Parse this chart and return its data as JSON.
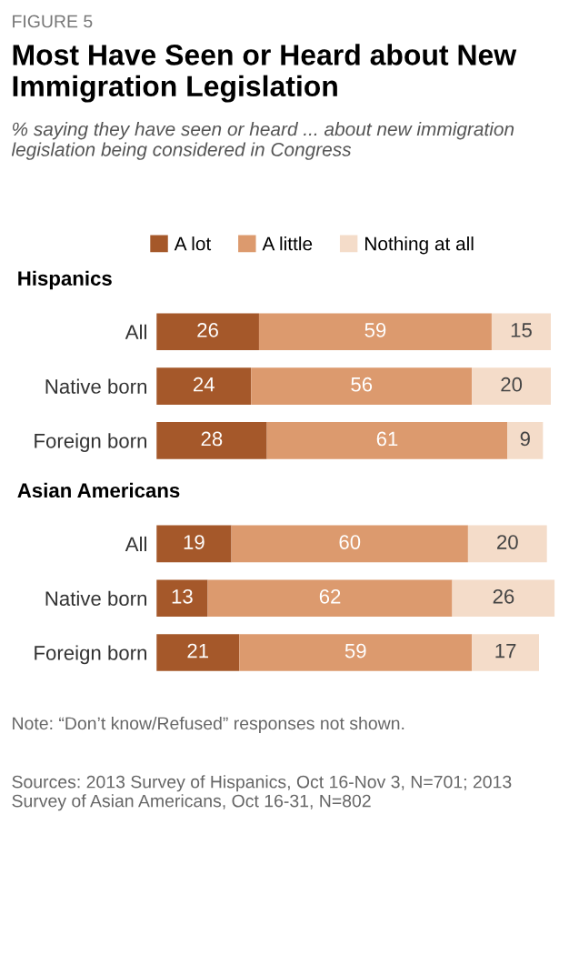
{
  "chart_data": {
    "type": "bar",
    "orientation": "horizontal",
    "stacked": true,
    "title": "Most Have Seen or Heard about New Immigration Legislation",
    "subtitle": "% saying they have seen or heard ... about new immigration legislation being considered in Congress",
    "categories": [
      "All",
      "Native born",
      "Foreign born",
      "All",
      "Native born",
      "Foreign born"
    ],
    "series": [
      {
        "name": "A lot",
        "color": "#a5582a",
        "values": [
          26,
          24,
          28,
          19,
          13,
          21
        ]
      },
      {
        "name": "A little",
        "color": "#dc9a6e",
        "values": [
          59,
          56,
          61,
          60,
          62,
          59
        ]
      },
      {
        "name": "Nothing at all",
        "color": "#f4dcc9",
        "values": [
          15,
          20,
          9,
          20,
          26,
          17
        ]
      }
    ],
    "xlim": [
      0,
      101
    ],
    "tick_labels": "y",
    "data_labels": true,
    "legend": "top",
    "grid": false,
    "annotations": [
      "FIGURE 5",
      "Hispanics",
      "Asian Americans",
      "Note: “Don’t know/Refused” responses not shown.",
      "Sources: 2013 Survey of Hispanics, Oct 16-Nov 3, N=701; 2013 Survey of Asian Americans, Oct 16-31, N=802"
    ]
  }
}
